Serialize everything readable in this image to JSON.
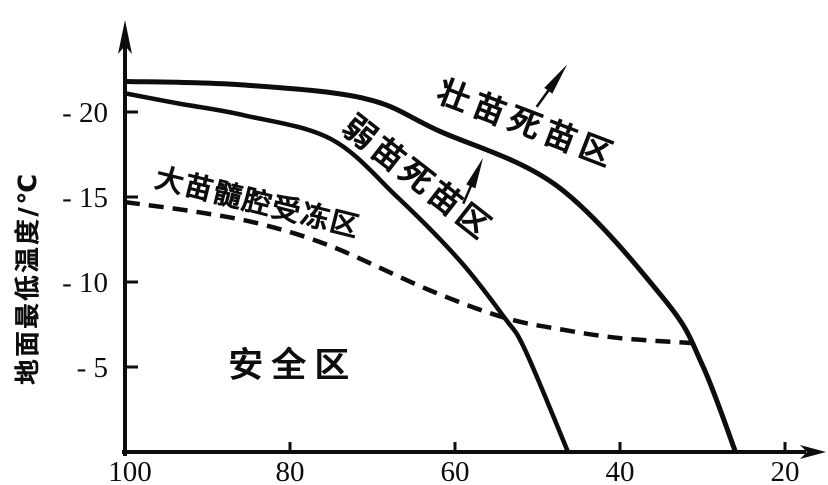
{
  "figure": {
    "background": "#ffffff",
    "ink": "#0d0d0d"
  },
  "chart_data": {
    "type": "line",
    "title": "",
    "xlabel": "",
    "ylabel": "地面最低温度/℃",
    "grid": false,
    "legend": "none",
    "x_axis": {
      "reversed": true,
      "range": [
        100,
        16
      ],
      "ticks": [
        100,
        80,
        60,
        40,
        20
      ],
      "tick_labels": [
        "100",
        "80",
        "60",
        "40",
        "20"
      ]
    },
    "y_axis": {
      "range": [
        0,
        -25
      ],
      "ticks": [
        -20,
        -15,
        -10,
        -5
      ],
      "tick_labels": [
        "- 20",
        "- 15",
        "- 10",
        "- 5"
      ]
    },
    "series": [
      {
        "id": "strong_seedling_death_boundary",
        "zone_label": "壮苗死苗区",
        "style": "solid",
        "stroke_width": 5,
        "points": [
          [
            100,
            -21.8
          ],
          [
            86,
            -21.6
          ],
          [
            71,
            -20.8
          ],
          [
            62,
            -18.9
          ],
          [
            47.5,
            -15.6
          ],
          [
            34.5,
            -8.9
          ],
          [
            30,
            -5.1
          ],
          [
            26,
            0
          ]
        ]
      },
      {
        "id": "weak_seedling_death_boundary",
        "zone_label": "弱苗死苗区",
        "style": "solid",
        "stroke_width": 4.5,
        "points": [
          [
            100,
            -21.1
          ],
          [
            93.5,
            -20.5
          ],
          [
            85.5,
            -19.8
          ],
          [
            75,
            -18.4
          ],
          [
            67,
            -15.0
          ],
          [
            59.5,
            -11.3
          ],
          [
            54,
            -7.9
          ],
          [
            51.5,
            -6.0
          ],
          [
            46.3,
            0
          ]
        ]
      },
      {
        "id": "big_seedling_pith_frost_boundary",
        "zone_label": "大苗髓腔受冻区",
        "style": "dashed",
        "stroke_width": 4.5,
        "points": [
          [
            100,
            -14.7
          ],
          [
            91,
            -14.1
          ],
          [
            83.5,
            -13.4
          ],
          [
            75,
            -12.1
          ],
          [
            63,
            -9.5
          ],
          [
            54,
            -7.9
          ],
          [
            47,
            -7.2
          ],
          [
            40,
            -6.7
          ],
          [
            31,
            -6.4
          ]
        ]
      }
    ],
    "zone_labels": [
      {
        "text": "壮苗死苗区"
      },
      {
        "text": "弱苗死苗区"
      },
      {
        "text": "大苗髓腔受冻区"
      },
      {
        "text": "安全区"
      }
    ],
    "annotations": [
      {
        "name": "up-right-arrow-strong-zone",
        "tail": [
          50.1,
          -20.3
        ],
        "tip": [
          46.4,
          -22.8
        ]
      },
      {
        "name": "up-right-arrow-weak-zone",
        "tail": [
          59.0,
          -14.6
        ],
        "tip": [
          56.6,
          -17.3
        ]
      }
    ]
  }
}
